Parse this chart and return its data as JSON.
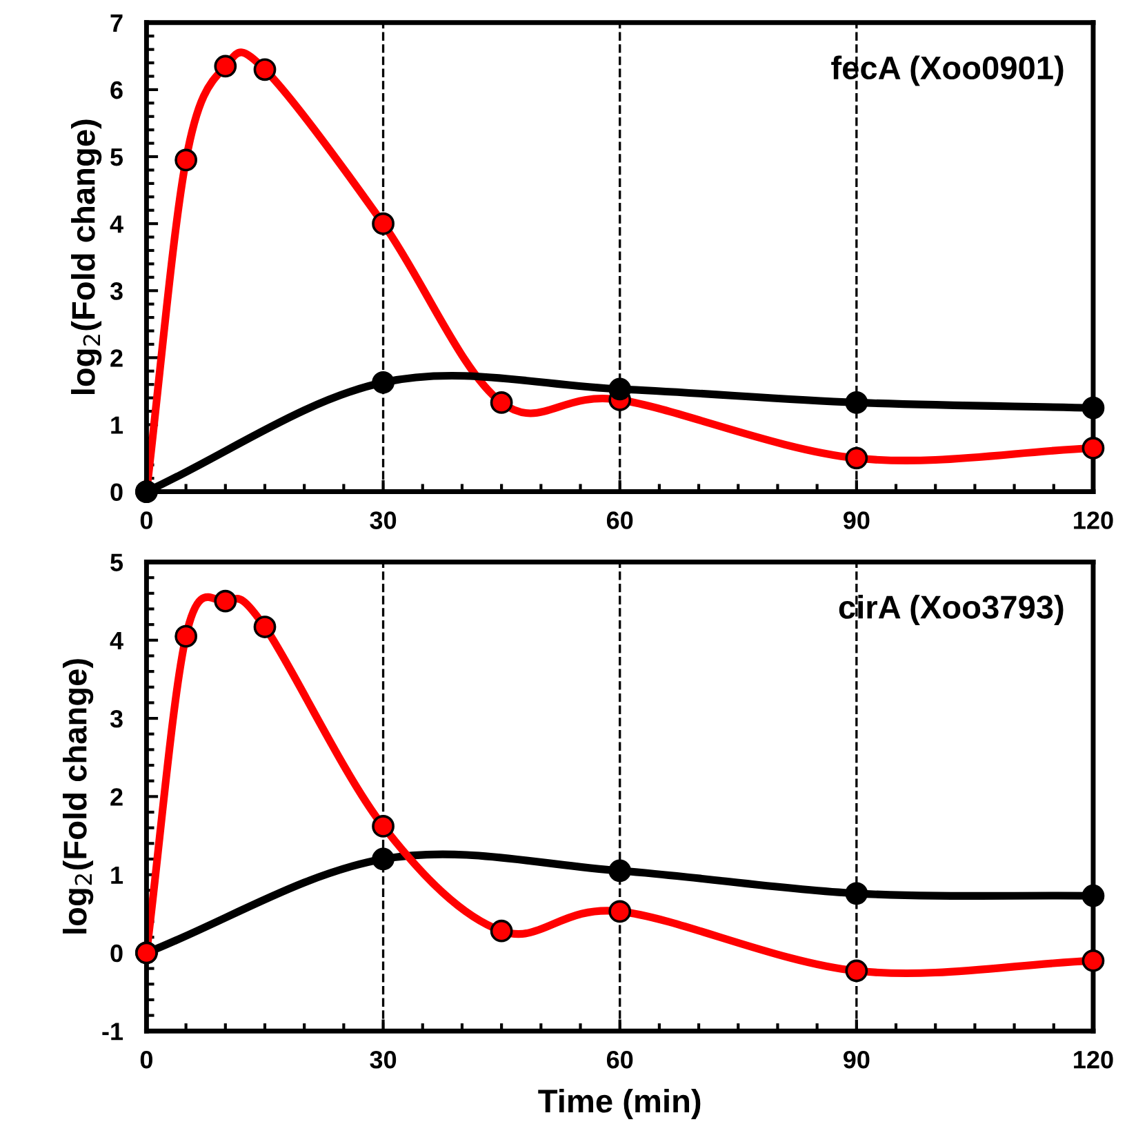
{
  "chart_data": [
    {
      "type": "line",
      "title": "fecA (Xoo0901)",
      "ylabel": "log$_{2}$(Fold change)",
      "xlim": [
        0,
        120
      ],
      "xticks": [
        0,
        30,
        60,
        90,
        120
      ],
      "ylim": [
        0,
        7
      ],
      "yticks": [
        0,
        1,
        2,
        3,
        4,
        5,
        6,
        7
      ],
      "marker": "circle",
      "line_style": "solid",
      "grid": false,
      "legend": false,
      "ref_lines": [
        {
          "axis": "x",
          "value": 30,
          "line_style": "dashed",
          "color": "#000000"
        },
        {
          "axis": "x",
          "value": 60,
          "line_style": "dashed",
          "color": "#000000"
        },
        {
          "axis": "x",
          "value": 90,
          "line_style": "dashed",
          "color": "#000000"
        }
      ],
      "series": [
        {
          "color": "#ff0000",
          "x": [
            0,
            5,
            10,
            15,
            30,
            45,
            60,
            90,
            120
          ],
          "values": [
            0,
            4.95,
            6.35,
            6.3,
            4.0,
            1.33,
            1.37,
            0.5,
            0.65
          ]
        },
        {
          "color": "#000000",
          "x": [
            0,
            30,
            60,
            90,
            120
          ],
          "values": [
            0,
            1.63,
            1.53,
            1.33,
            1.25
          ]
        }
      ]
    },
    {
      "type": "line",
      "title": "cirA (Xoo3793)",
      "ylabel": "log$_{2}$(Fold change)",
      "xlabel": "Time (min)",
      "xlim": [
        0,
        120
      ],
      "xticks": [
        0,
        30,
        60,
        90,
        120
      ],
      "ylim": [
        -1,
        5
      ],
      "yticks": [
        -1,
        0,
        1,
        2,
        3,
        4,
        5
      ],
      "marker": "circle",
      "line_style": "solid",
      "grid": false,
      "legend": false,
      "ref_lines": [
        {
          "axis": "x",
          "value": 30,
          "line_style": "dashed",
          "color": "#000000"
        },
        {
          "axis": "x",
          "value": 60,
          "line_style": "dashed",
          "color": "#000000"
        },
        {
          "axis": "x",
          "value": 90,
          "line_style": "dashed",
          "color": "#000000"
        }
      ],
      "series": [
        {
          "color": "#000000",
          "x": [
            0,
            30,
            60,
            90,
            120
          ],
          "values": [
            0,
            1.2,
            1.05,
            0.76,
            0.73
          ]
        },
        {
          "color": "#ff0000",
          "x": [
            0,
            5,
            10,
            15,
            30,
            45,
            60,
            90,
            120
          ],
          "values": [
            0,
            4.05,
            4.5,
            4.17,
            1.62,
            0.28,
            0.53,
            -0.23,
            -0.1
          ]
        }
      ]
    }
  ]
}
